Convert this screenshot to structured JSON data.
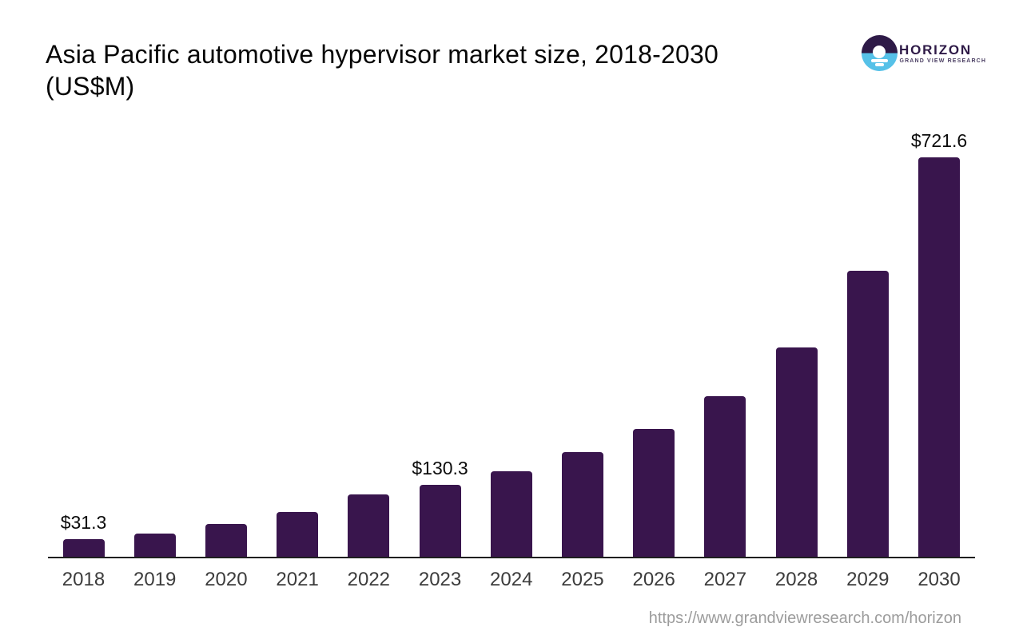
{
  "header": {
    "title_line1": "Asia Pacific automotive hypervisor market size, 2018-2030",
    "title_line2": "(US$M)"
  },
  "logo": {
    "name": "HORIZON",
    "subtitle": "GRAND VIEW RESEARCH",
    "purple": "#2e1a47",
    "blue": "#56c1e8"
  },
  "footer": {
    "source_url": "https://www.grandviewresearch.com/horizon"
  },
  "chart_data": {
    "type": "bar",
    "title": "Asia Pacific automotive hypervisor market size, 2018-2030 (US$M)",
    "unit": "US$M",
    "categories": [
      "2018",
      "2019",
      "2020",
      "2021",
      "2022",
      "2023",
      "2024",
      "2025",
      "2026",
      "2027",
      "2028",
      "2029",
      "2030"
    ],
    "values": [
      31.3,
      42.0,
      58.5,
      80.3,
      112.4,
      130.3,
      154.8,
      188.3,
      230.2,
      290.3,
      377.3,
      516.8,
      721.6
    ],
    "bar_labels": [
      "$31.3",
      "",
      "",
      "",
      "",
      "$130.3",
      "",
      "",
      "",
      "",
      "",
      "",
      "$721.6"
    ],
    "bar_color": "#39154d",
    "xlabel": "",
    "ylabel": "",
    "ylim": [
      0,
      740
    ],
    "grid": false,
    "legend": "none",
    "y_axis_visible": false,
    "x_axis_visible": true
  }
}
